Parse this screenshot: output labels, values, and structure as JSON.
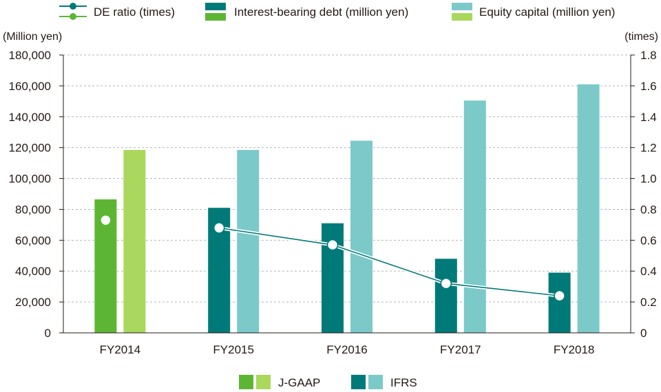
{
  "colors": {
    "jgaap_debt": "#5db633",
    "jgaap_equity": "#a9d85c",
    "ifrs_debt": "#007a78",
    "ifrs_equity": "#7bcac9",
    "ratio_line": "#007a78",
    "grid": "#b5b5b5",
    "axis": "#231815"
  },
  "legend": {
    "de_ratio": "DE ratio (times)",
    "debt": "Interest-bearing debt (million yen)",
    "equity": "Equity capital (million yen)",
    "jgaap": "J-GAAP",
    "ifrs": "IFRS"
  },
  "chart_data": {
    "type": "bar",
    "categories": [
      "FY2014",
      "FY2015",
      "FY2016",
      "FY2017",
      "FY2018"
    ],
    "standard": [
      "J-GAAP",
      "IFRS",
      "IFRS",
      "IFRS",
      "IFRS"
    ],
    "series": [
      {
        "name": "Interest-bearing debt (million yen)",
        "type": "bar",
        "axis": "left",
        "values": [
          86500,
          81000,
          71000,
          48000,
          39000
        ]
      },
      {
        "name": "Equity capital (million yen)",
        "type": "bar",
        "axis": "left",
        "values": [
          118500,
          118500,
          124500,
          150500,
          161000
        ]
      },
      {
        "name": "DE ratio (times)",
        "type": "line",
        "axis": "right",
        "values": [
          0.73,
          0.68,
          0.57,
          0.32,
          0.24
        ]
      }
    ],
    "ylabel_left": "(Million yen)",
    "ylabel_right": "(times)",
    "ylim_left": [
      0,
      180000
    ],
    "ylim_right": [
      0,
      1.8
    ],
    "yticks_left": [
      "0",
      "20,000",
      "40,000",
      "60,000",
      "80,000",
      "100,000",
      "120,000",
      "140,000",
      "160,000",
      "180,000"
    ],
    "yticks_right": [
      "0",
      "0.2",
      "0.4",
      "0.6",
      "0.8",
      "1.0",
      "1.2",
      "1.4",
      "1.6",
      "1.8"
    ],
    "grid": true,
    "legend_position": "top and bottom"
  }
}
